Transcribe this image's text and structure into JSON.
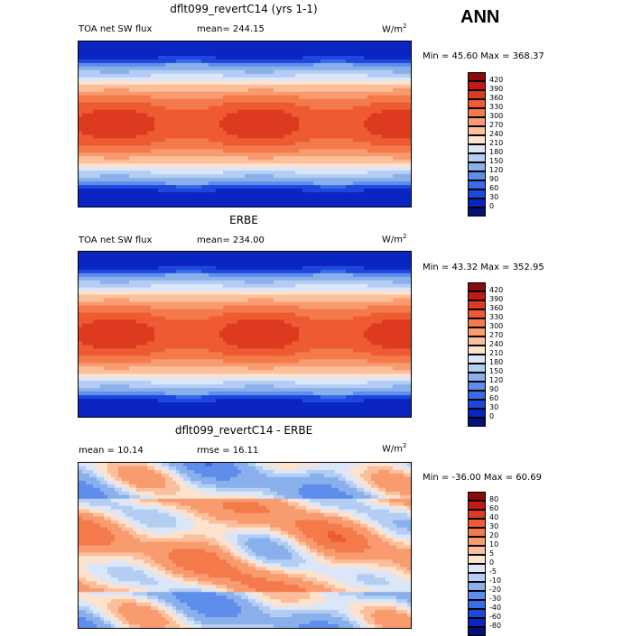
{
  "season": "ANN",
  "panels": [
    {
      "title": "dflt099_revertC14 (yrs 1-1)",
      "left_label": "TOA net SW flux",
      "stat1": "mean= 244.15",
      "stat2": "",
      "units": "W/m",
      "units_exp": "2",
      "minmax": "Min =  45.60 Max = 368.37",
      "colorbar": {
        "labels": [
          "420",
          "390",
          "360",
          "330",
          "300",
          "270",
          "240",
          "210",
          "180",
          "150",
          "120",
          "90",
          "60",
          "30",
          "0"
        ],
        "colors": [
          "#8b0a0a",
          "#c41a12",
          "#de3a1f",
          "#ee5a32",
          "#f47a4c",
          "#f89b6e",
          "#fbbf9c",
          "#fde2ce",
          "#dbe7f8",
          "#b4cdf2",
          "#8ab0ec",
          "#5e8deb",
          "#3a6bea",
          "#1d47df",
          "#0a25c2",
          "#03127a"
        ]
      }
    },
    {
      "title": "ERBE",
      "left_label": "TOA net SW flux",
      "stat1": "mean= 234.00",
      "stat2": "",
      "units": "W/m",
      "units_exp": "2",
      "minmax": "Min =  43.32 Max = 352.95",
      "colorbar": {
        "labels": [
          "420",
          "390",
          "360",
          "330",
          "300",
          "270",
          "240",
          "210",
          "180",
          "150",
          "120",
          "90",
          "60",
          "30",
          "0"
        ],
        "colors": [
          "#8b0a0a",
          "#c41a12",
          "#de3a1f",
          "#ee5a32",
          "#f47a4c",
          "#f89b6e",
          "#fbbf9c",
          "#fde2ce",
          "#dbe7f8",
          "#b4cdf2",
          "#8ab0ec",
          "#5e8deb",
          "#3a6bea",
          "#1d47df",
          "#0a25c2",
          "#03127a"
        ]
      }
    },
    {
      "title": "dflt099_revertC14 - ERBE",
      "left_label": "mean =  10.14",
      "stat1": "",
      "stat2": "rmse =  16.11",
      "units": "W/m",
      "units_exp": "2",
      "minmax": "Min = -36.00 Max =  60.69",
      "colorbar": {
        "labels": [
          "80",
          "60",
          "40",
          "30",
          "20",
          "10",
          "5",
          "0",
          "-5",
          "-10",
          "-20",
          "-30",
          "-40",
          "-60",
          "-80"
        ],
        "colors": [
          "#8b0a0a",
          "#c41a12",
          "#de3a1f",
          "#ee5a32",
          "#f47a4c",
          "#f89b6e",
          "#fbbf9c",
          "#fde2ce",
          "#dbe7f8",
          "#b4cdf2",
          "#8ab0ec",
          "#5e8deb",
          "#3a6bea",
          "#1d47df",
          "#0a25c2",
          "#03127a"
        ]
      }
    }
  ],
  "chart_data": [
    {
      "type": "heatmap",
      "title": "dflt099_revertC14 (yrs 1-1)",
      "variable": "TOA net SW flux",
      "mean": 244.15,
      "min": 45.6,
      "max": 368.37,
      "units": "W/m2",
      "levels": [
        0,
        30,
        60,
        90,
        120,
        150,
        180,
        210,
        240,
        270,
        300,
        330,
        360,
        390,
        420
      ]
    },
    {
      "type": "heatmap",
      "title": "ERBE",
      "variable": "TOA net SW flux",
      "mean": 234.0,
      "min": 43.32,
      "max": 352.95,
      "units": "W/m2",
      "levels": [
        0,
        30,
        60,
        90,
        120,
        150,
        180,
        210,
        240,
        270,
        300,
        330,
        360,
        390,
        420
      ]
    },
    {
      "type": "heatmap",
      "title": "dflt099_revertC14 - ERBE",
      "mean": 10.14,
      "rmse": 16.11,
      "min": -36.0,
      "max": 60.69,
      "units": "W/m2",
      "levels": [
        -80,
        -60,
        -40,
        -30,
        -20,
        -10,
        -5,
        0,
        5,
        10,
        20,
        30,
        40,
        60,
        80
      ]
    }
  ]
}
